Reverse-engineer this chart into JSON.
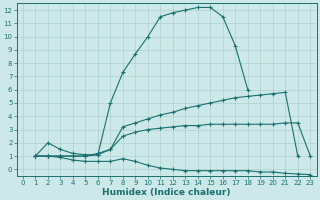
{
  "xlabel": "Humidex (Indice chaleur)",
  "bg_color": "#cce8e8",
  "line_color": "#1a7070",
  "grid_color": "#b0d0d0",
  "xlim": [
    -0.5,
    23.5
  ],
  "ylim": [
    -0.5,
    12.5
  ],
  "xticks": [
    0,
    1,
    2,
    3,
    4,
    5,
    6,
    7,
    8,
    9,
    10,
    11,
    12,
    13,
    14,
    15,
    16,
    17,
    18,
    19,
    20,
    21,
    22,
    23
  ],
  "yticks": [
    0,
    1,
    2,
    3,
    4,
    5,
    6,
    7,
    8,
    9,
    10,
    11,
    12
  ],
  "line1_x": [
    1,
    2,
    3,
    4,
    5,
    6,
    7,
    8,
    9,
    10,
    11,
    12,
    13,
    14,
    15,
    16,
    17,
    18
  ],
  "line1_y": [
    1.0,
    2.0,
    1.5,
    1.2,
    1.1,
    1.1,
    5.0,
    7.3,
    8.7,
    10.0,
    11.5,
    11.8,
    12.0,
    12.2,
    12.2,
    11.5,
    9.3,
    6.0
  ],
  "line2_x": [
    1,
    2,
    3,
    4,
    5,
    6,
    7,
    8,
    9,
    10,
    11,
    12,
    13,
    14,
    15,
    16,
    17,
    18,
    19,
    20,
    21,
    22
  ],
  "line2_y": [
    1.0,
    1.0,
    1.0,
    1.0,
    1.0,
    1.2,
    1.5,
    3.2,
    3.5,
    3.8,
    4.1,
    4.3,
    4.6,
    4.8,
    5.0,
    5.2,
    5.4,
    5.5,
    5.6,
    5.7,
    5.8,
    1.0
  ],
  "line3_x": [
    1,
    2,
    3,
    4,
    5,
    6,
    7,
    8,
    9,
    10,
    11,
    12,
    13,
    14,
    15,
    16,
    17,
    18,
    19,
    20,
    21,
    22,
    23
  ],
  "line3_y": [
    1.0,
    1.0,
    1.0,
    1.0,
    1.0,
    1.1,
    1.5,
    2.5,
    2.8,
    3.0,
    3.1,
    3.2,
    3.3,
    3.3,
    3.4,
    3.4,
    3.4,
    3.4,
    3.4,
    3.4,
    3.5,
    3.5,
    1.0
  ],
  "line4_x": [
    1,
    2,
    3,
    4,
    5,
    6,
    7,
    8,
    9,
    10,
    11,
    12,
    13,
    14,
    15,
    16,
    17,
    18,
    19,
    20,
    21,
    22,
    23
  ],
  "line4_y": [
    1.0,
    1.0,
    0.9,
    0.7,
    0.6,
    0.6,
    0.6,
    0.8,
    0.6,
    0.3,
    0.1,
    0.0,
    -0.1,
    -0.1,
    -0.1,
    -0.1,
    -0.1,
    -0.1,
    -0.2,
    -0.2,
    -0.3,
    -0.35,
    -0.4
  ]
}
